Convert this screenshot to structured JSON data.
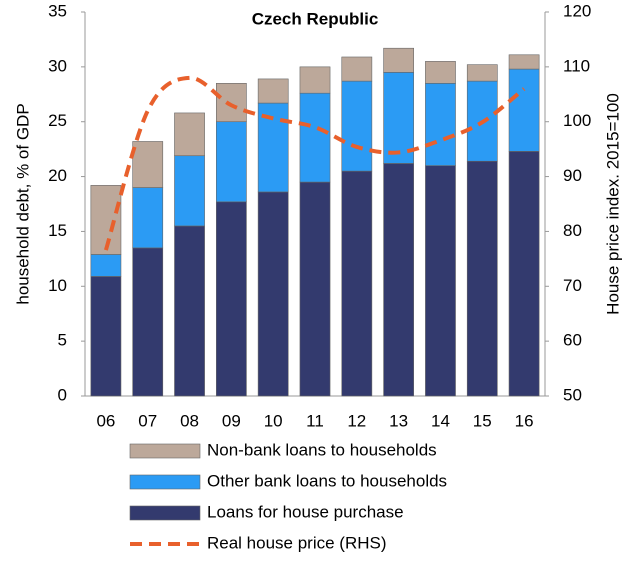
{
  "chart_data": {
    "type": "stacked-bar-line",
    "title": "Czech Republic",
    "y_label": "household debt, % of GDP",
    "y2_label": "House price index. 2015=100",
    "categories": [
      "06",
      "07",
      "08",
      "09",
      "10",
      "11",
      "12",
      "13",
      "14",
      "15",
      "16"
    ],
    "series": [
      {
        "name": "Loans for house purchase",
        "color": "#333a6e",
        "values": [
          10.9,
          13.5,
          15.5,
          17.7,
          18.6,
          19.5,
          20.5,
          21.2,
          21.0,
          21.4,
          22.3
        ]
      },
      {
        "name": "Other bank loans to households",
        "color": "#2b9bf4",
        "values": [
          2.0,
          5.5,
          6.4,
          7.3,
          8.1,
          8.1,
          8.2,
          8.3,
          7.5,
          7.3,
          7.5
        ]
      },
      {
        "name": "Non-bank loans to households",
        "color": "#bca89a",
        "values": [
          6.3,
          4.2,
          3.9,
          3.5,
          2.2,
          2.4,
          2.2,
          2.2,
          2.0,
          1.5,
          1.3
        ]
      },
      {
        "name": "Real house price (RHS)",
        "color": "#e8602c",
        "axis": "y2",
        "values": [
          76.6,
          102,
          108,
          103,
          100.6,
          99,
          95.4,
          94.4,
          96.6,
          99.9,
          106
        ]
      }
    ],
    "legend_order": [
      2,
      1,
      0,
      3
    ],
    "ylim": [
      0,
      35
    ],
    "yticks": [
      0,
      5,
      10,
      15,
      20,
      25,
      30,
      35
    ],
    "y2lim": [
      50,
      120
    ],
    "y2ticks": [
      50,
      60,
      70,
      80,
      90,
      100,
      110,
      120
    ]
  }
}
